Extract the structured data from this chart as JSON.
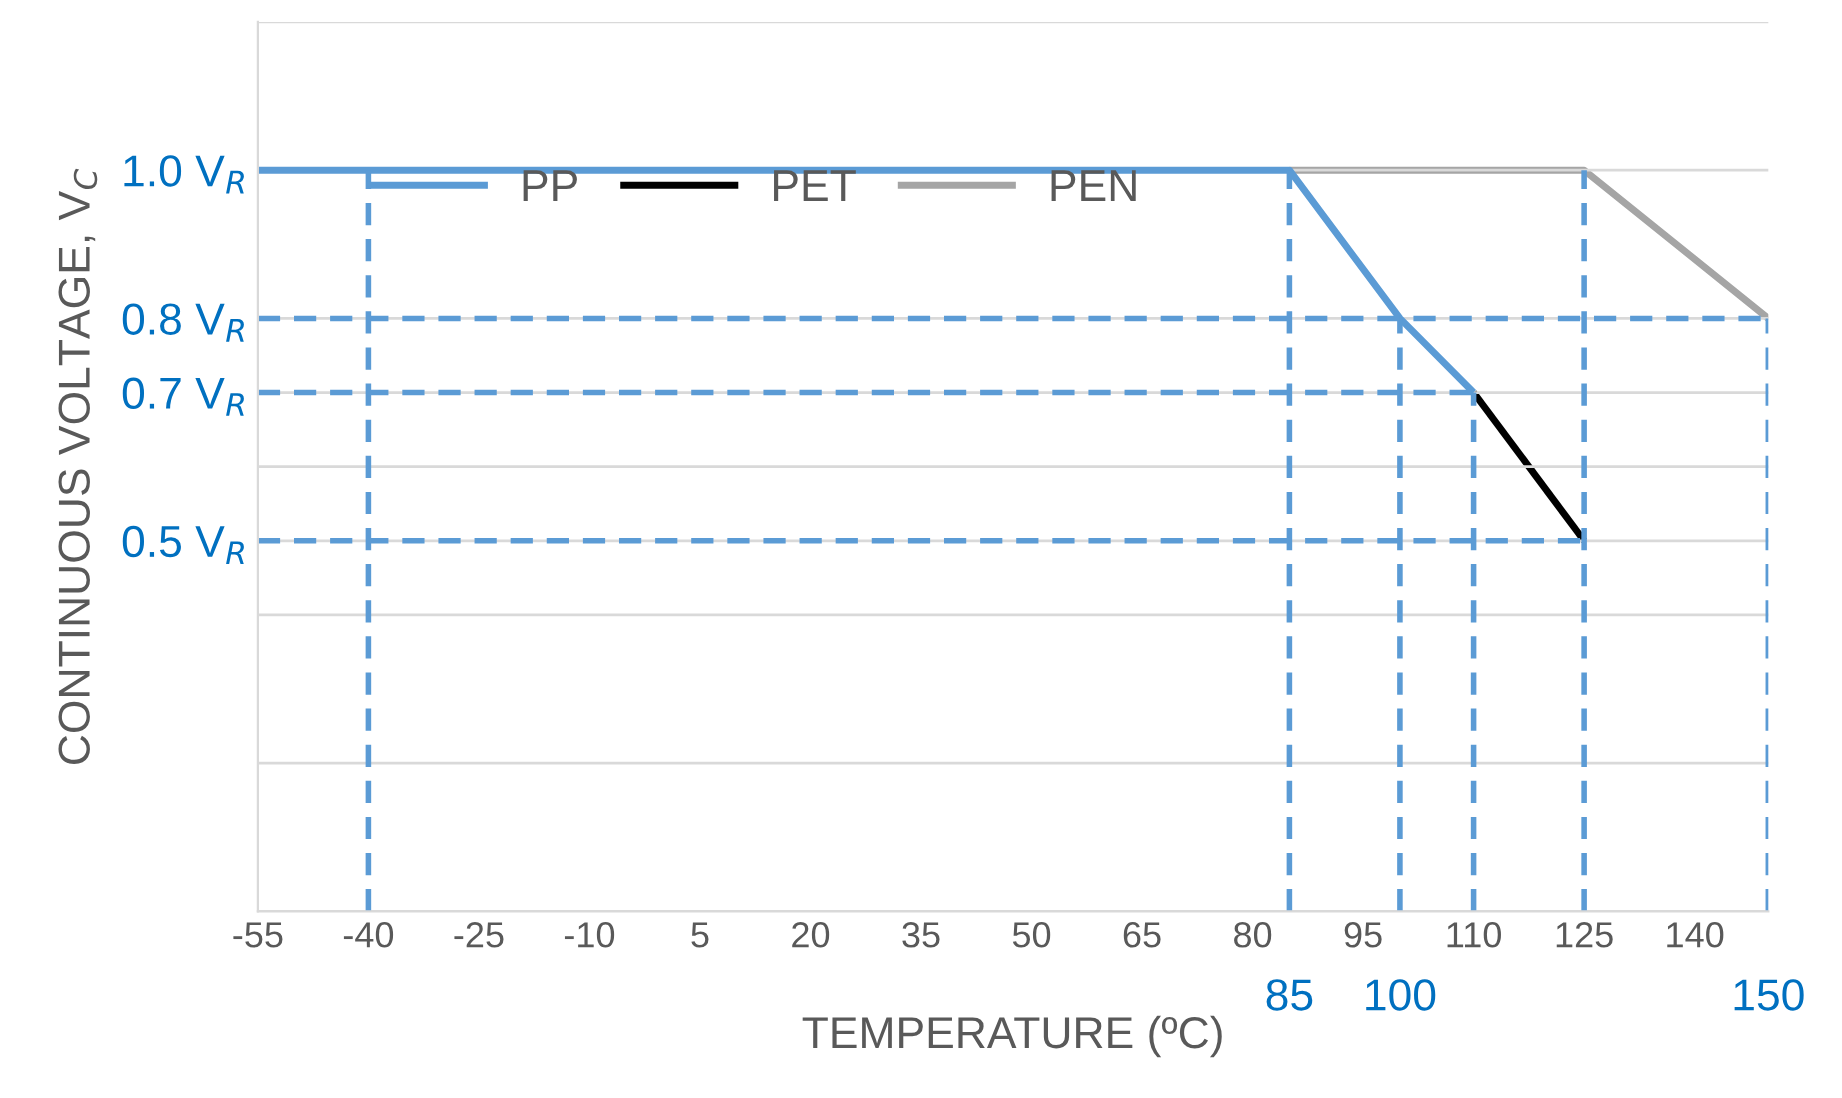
{
  "chart_data": {
    "type": "line",
    "xlabel": "TEMPERATURE (ºC)",
    "ylabel": "CONTINUOUS VOLTAGE, V$_{C}$",
    "xlim": [
      -55,
      150
    ],
    "xticks": [
      -55,
      -40,
      -25,
      -10,
      5,
      20,
      35,
      50,
      65,
      80,
      95,
      110,
      125,
      140
    ],
    "ylim": [
      0,
      1.2
    ],
    "yticks": [
      {
        "value": 0,
        "label": null
      },
      {
        "value": 0.2,
        "label": null
      },
      {
        "value": 0.4,
        "label": null
      },
      {
        "value": 0.5,
        "label": "0.5 V$_{R}$"
      },
      {
        "value": 0.6,
        "label": null
      },
      {
        "value": 0.7,
        "label": "0.7 V$_{R}$"
      },
      {
        "value": 0.8,
        "label": "0.8 V$_{R}$"
      },
      {
        "value": 1.0,
        "label": "1.0 V$_{R}$"
      },
      {
        "value": 1.2,
        "label": null
      }
    ],
    "grid": "y",
    "legend": "top",
    "marker": "none",
    "series": [
      {
        "color": "#5b9bd5",
        "line_style": "dashed",
        "x": [
          -40,
          -40
        ],
        "values": [
          0,
          1.0
        ]
      },
      {
        "color": "#5b9bd5",
        "line_style": "dashed",
        "x": [
          85,
          85
        ],
        "values": [
          0,
          1.0
        ]
      },
      {
        "color": "#5b9bd5",
        "line_style": "dashed",
        "x": [
          100,
          100
        ],
        "values": [
          0,
          0.8
        ]
      },
      {
        "color": "#5b9bd5",
        "line_style": "dashed",
        "x": [
          110,
          110
        ],
        "values": [
          0,
          0.7
        ]
      },
      {
        "color": "#5b9bd5",
        "line_style": "dashed",
        "x": [
          125,
          125
        ],
        "values": [
          0,
          1.0
        ]
      },
      {
        "color": "#5b9bd5",
        "line_style": "dashed",
        "x": [
          150,
          150
        ],
        "values": [
          0,
          0.8
        ]
      },
      {
        "color": "#5b9bd5",
        "line_style": "dashed",
        "x": [
          -55,
          150
        ],
        "values": [
          0.8,
          0.8
        ]
      },
      {
        "color": "#5b9bd5",
        "line_style": "dashed",
        "x": [
          -55,
          110
        ],
        "values": [
          0.7,
          0.7
        ]
      },
      {
        "color": "#5b9bd5",
        "line_style": "dashed",
        "x": [
          -55,
          125
        ],
        "values": [
          0.5,
          0.5
        ]
      },
      {
        "name": "PP",
        "color": "#5b9bd5",
        "line_style": "solid",
        "x": [
          -55,
          85,
          100,
          110
        ],
        "values": [
          1.0,
          1.0,
          0.8,
          0.7
        ]
      },
      {
        "name": "PET",
        "color": "#000000",
        "line_style": "solid",
        "x": [
          110,
          125
        ],
        "values": [
          0.7,
          0.5
        ]
      },
      {
        "name": "PEN",
        "color": "#a5a5a5",
        "line_style": "solid",
        "x": [
          85,
          125,
          150
        ],
        "values": [
          1.0,
          1.0,
          0.8
        ]
      }
    ],
    "annotations": [
      {
        "text": "85",
        "x": 85,
        "y": 0
      },
      {
        "text": "100",
        "x": 100,
        "y": 0
      },
      {
        "text": "150",
        "x": 150,
        "y": 0
      }
    ]
  }
}
